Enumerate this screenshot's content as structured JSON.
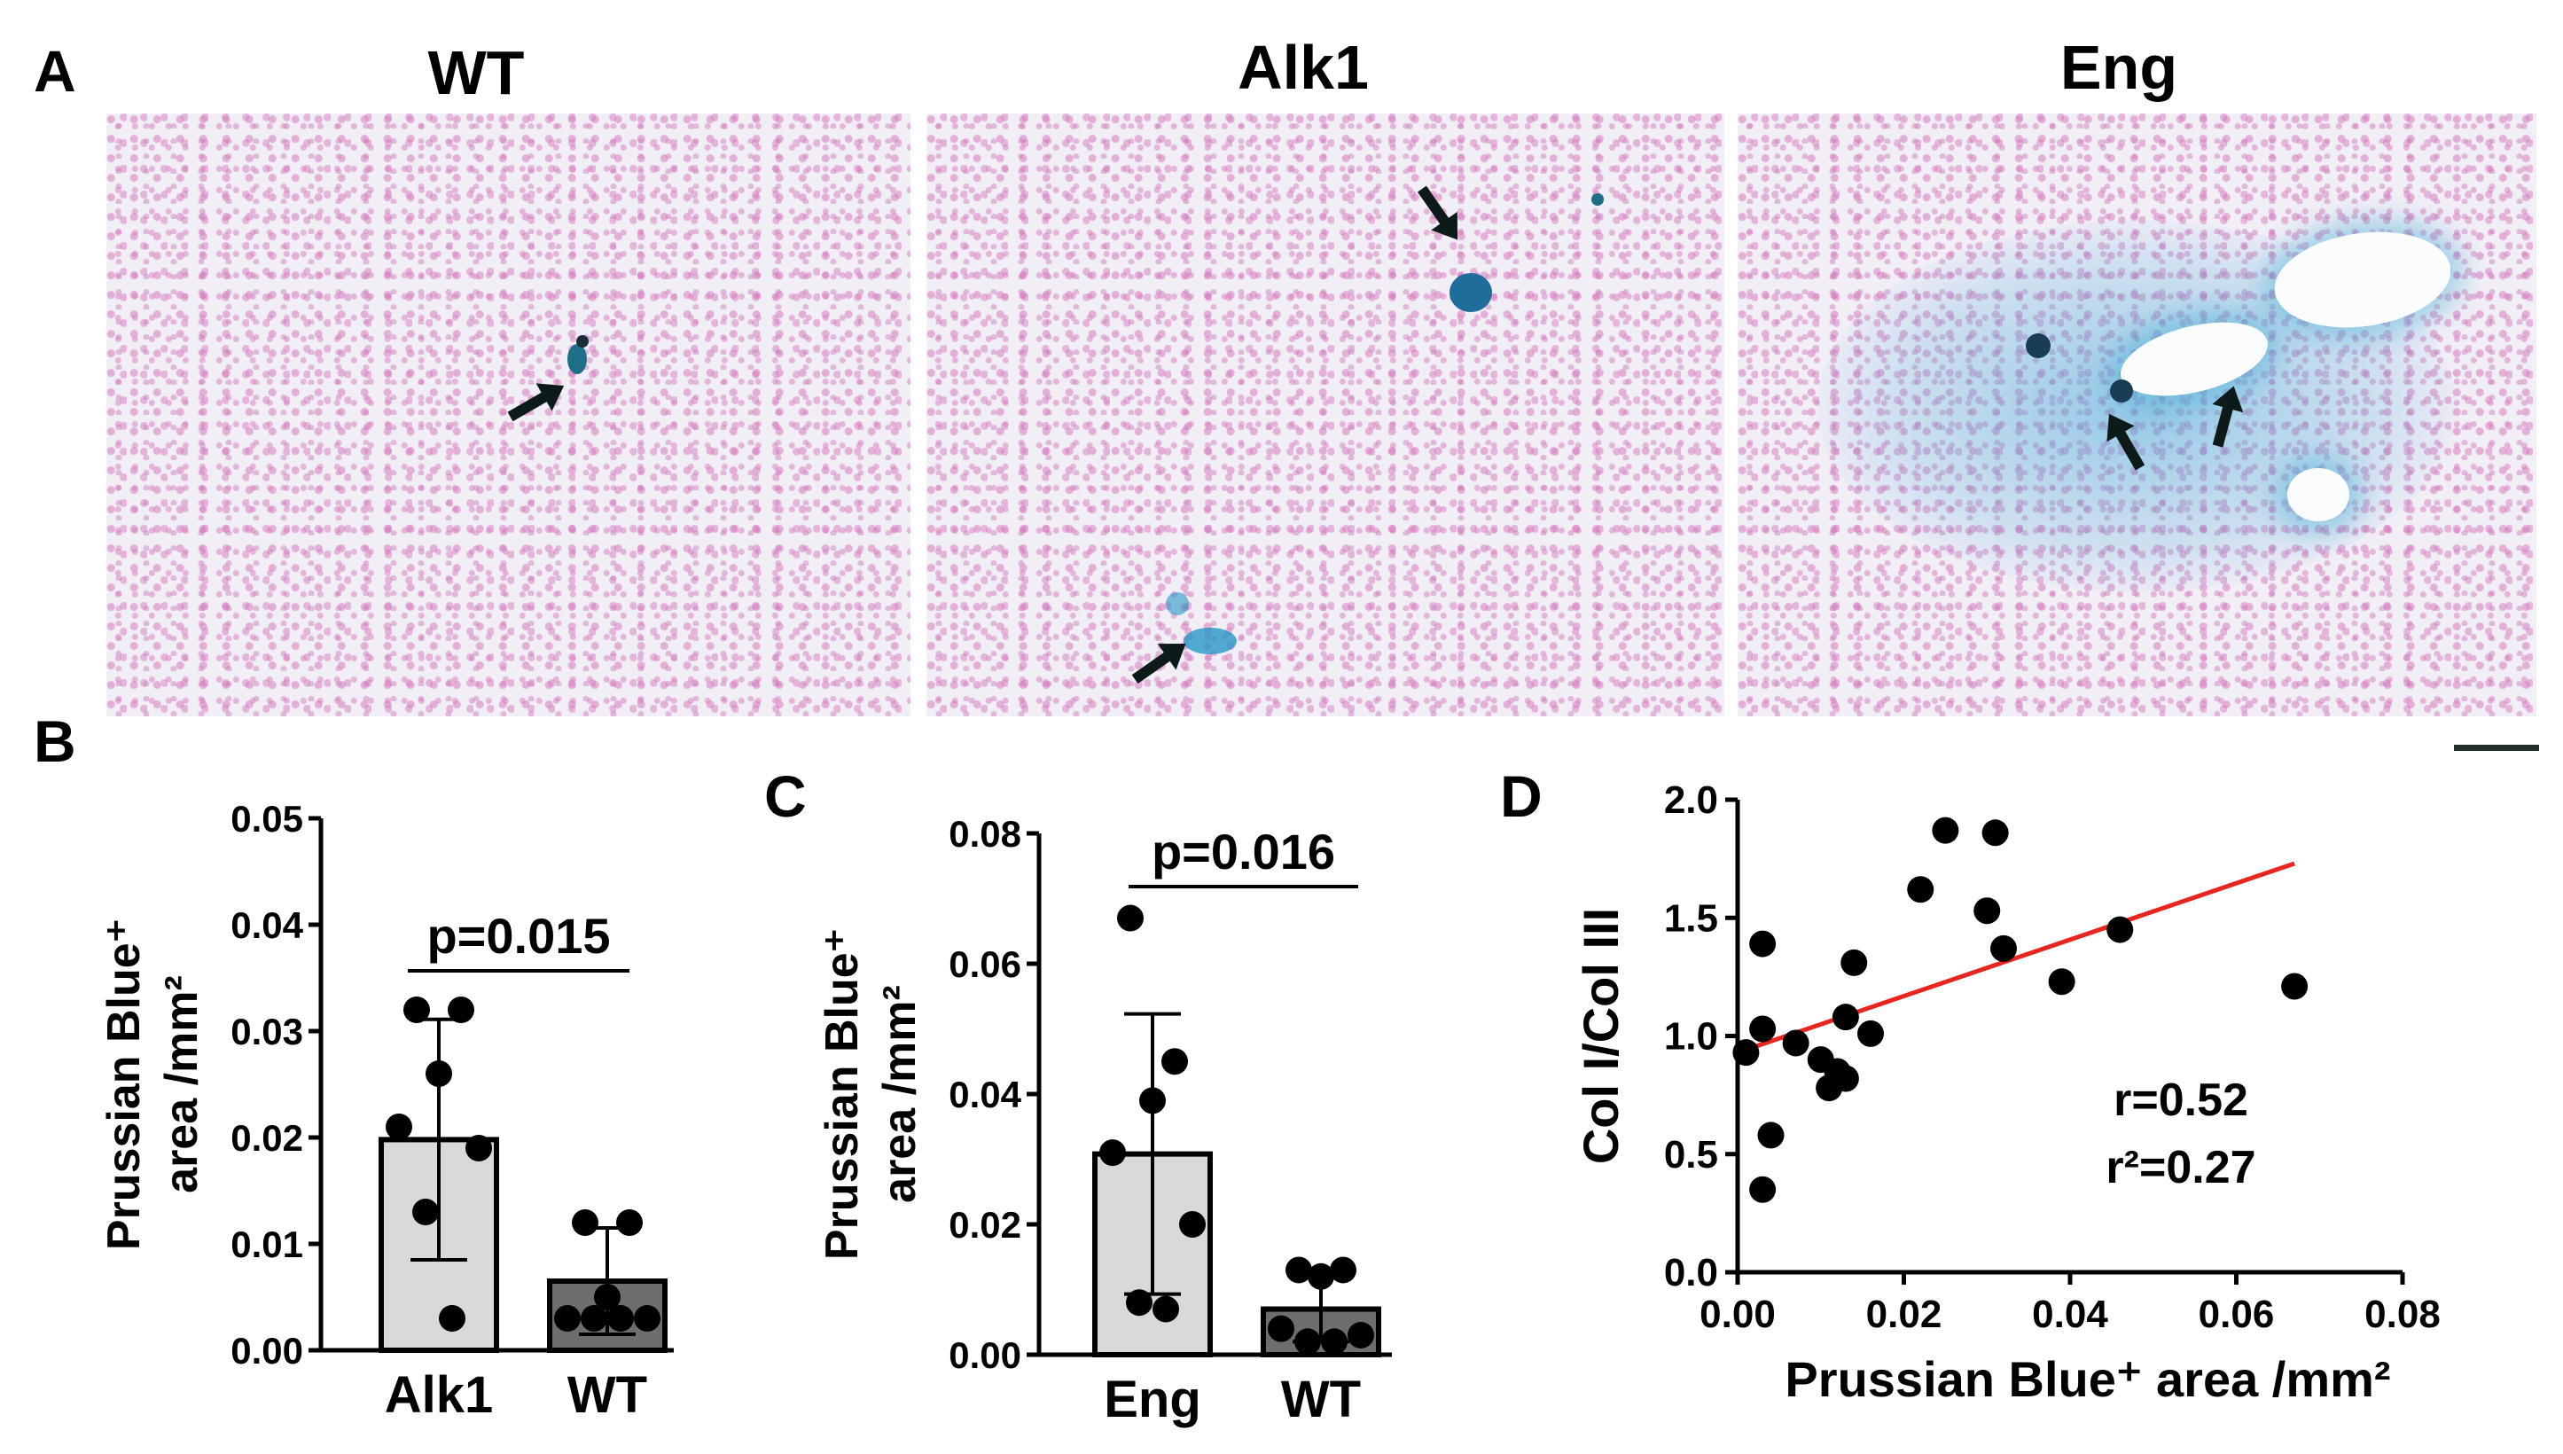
{
  "panelA": {
    "letter": "A",
    "titles": [
      "WT",
      "Alk1",
      "Eng"
    ]
  },
  "panelB": {
    "letter": "B",
    "pvalue": "p=0.015"
  },
  "panelC": {
    "letter": "C",
    "pvalue": "p=0.016"
  },
  "panelD": {
    "letter": "D",
    "r_label": "r=0.52",
    "r2_label": "r²=0.27",
    "line_color": "#e8251f"
  },
  "chart_data": [
    {
      "type": "bar",
      "panel": "B",
      "title": "",
      "ylabel_line1": "Prussian Blue⁺",
      "ylabel_line2": "area /mm²",
      "xlabel": "",
      "categories": [
        "Alk1",
        "WT"
      ],
      "bar_colors": [
        "#d9d9d9",
        "#6e6e6e"
      ],
      "values": [
        0.0198,
        0.0065
      ],
      "sd": [
        0.0113,
        0.005
      ],
      "points": [
        [
          0.032,
          0.032,
          0.026,
          0.021,
          0.019,
          0.013,
          0.003
        ],
        [
          0.012,
          0.012,
          0.005,
          0.003,
          0.003,
          0.003,
          0.003
        ]
      ],
      "ylim": [
        0,
        0.05
      ],
      "yticks": [
        "0.00",
        "0.01",
        "0.02",
        "0.03",
        "0.04",
        "0.05"
      ],
      "pvalue": "p=0.015"
    },
    {
      "type": "bar",
      "panel": "C",
      "title": "",
      "ylabel_line1": "Prussian Blue⁺",
      "ylabel_line2": "area /mm²",
      "xlabel": "",
      "categories": [
        "Eng",
        "WT"
      ],
      "bar_colors": [
        "#d9d9d9",
        "#6e6e6e"
      ],
      "values": [
        0.0308,
        0.007
      ],
      "sd": [
        0.0215,
        0.005
      ],
      "points": [
        [
          0.067,
          0.045,
          0.039,
          0.031,
          0.02,
          0.008,
          0.007
        ],
        [
          0.013,
          0.013,
          0.012,
          0.004,
          0.003,
          0.002,
          0.002
        ]
      ],
      "ylim": [
        0,
        0.08
      ],
      "yticks": [
        "0.00",
        "0.02",
        "0.04",
        "0.06",
        "0.08"
      ],
      "pvalue": "p=0.016"
    },
    {
      "type": "scatter",
      "panel": "D",
      "title": "",
      "xlabel": "Prussian Blue⁺ area /mm²",
      "ylabel": "Col I/Col III",
      "xlim": [
        0,
        0.08
      ],
      "ylim": [
        0,
        2.0
      ],
      "xticks": [
        "0.00",
        "0.02",
        "0.04",
        "0.06",
        "0.08"
      ],
      "yticks": [
        "0.0",
        "0.5",
        "1.0",
        "1.5",
        "2.0"
      ],
      "x": [
        0.001,
        0.003,
        0.003,
        0.003,
        0.004,
        0.007,
        0.01,
        0.011,
        0.012,
        0.013,
        0.013,
        0.014,
        0.016,
        0.022,
        0.025,
        0.03,
        0.031,
        0.032,
        0.039,
        0.046,
        0.067
      ],
      "y": [
        0.93,
        1.39,
        1.03,
        0.35,
        0.58,
        0.97,
        0.9,
        0.78,
        0.85,
        0.82,
        1.08,
        1.31,
        1.01,
        1.62,
        1.87,
        1.53,
        1.86,
        1.37,
        1.23,
        1.45,
        1.21
      ],
      "fit_line": {
        "x": [
          0,
          0.067
        ],
        "y": [
          0.93,
          1.73
        ]
      },
      "r": "r=0.52",
      "r2": "r²=0.27"
    }
  ]
}
